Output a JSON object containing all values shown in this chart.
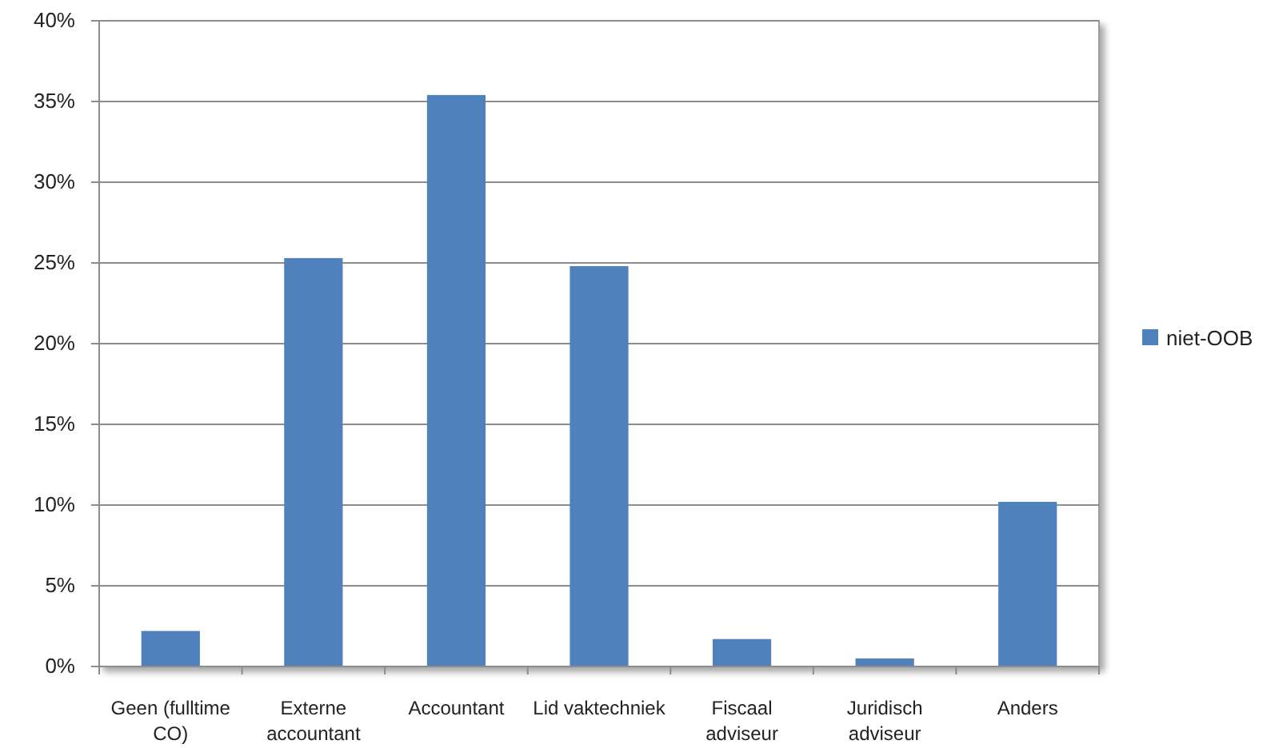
{
  "chart_data": {
    "type": "bar",
    "categories": [
      "Geen (fulltime CO)",
      "Externe accountant",
      "Accountant",
      "Lid vaktechniek",
      "Fiscaal adviseur",
      "Juridisch adviseur",
      "Anders"
    ],
    "series": [
      {
        "name": "niet-OOB",
        "color": "#4f81bd",
        "values": [
          2.2,
          25.3,
          35.4,
          24.8,
          1.7,
          0.5,
          10.2
        ]
      }
    ],
    "ylim": [
      0,
      40
    ],
    "yticks": [
      {
        "value": 0,
        "label": "0%"
      },
      {
        "value": 5,
        "label": "5%"
      },
      {
        "value": 10,
        "label": "10%"
      },
      {
        "value": 15,
        "label": "15%"
      },
      {
        "value": 20,
        "label": "20%"
      },
      {
        "value": 25,
        "label": "25%"
      },
      {
        "value": 30,
        "label": "30%"
      },
      {
        "value": 35,
        "label": "35%"
      },
      {
        "value": 40,
        "label": "40%"
      }
    ],
    "grid": "y",
    "legend": "right"
  }
}
